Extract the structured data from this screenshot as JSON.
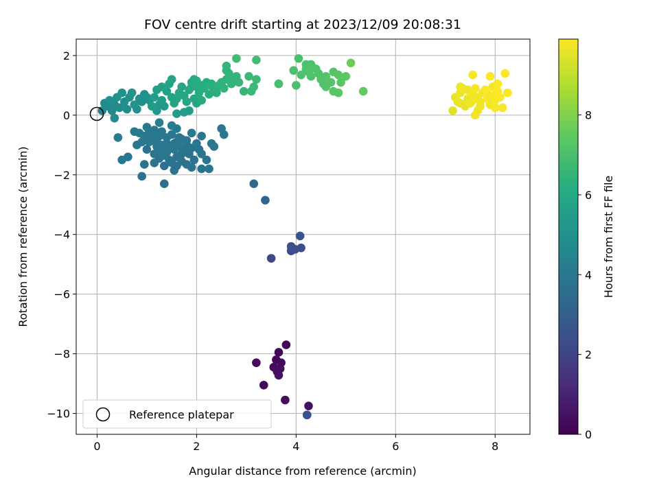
{
  "chart_data": {
    "type": "scatter",
    "title": "FOV centre drift starting at 2023/12/09 20:08:31",
    "xlabel": "Angular distance from reference (arcmin)",
    "ylabel": "Rotation from reference (arcmin)",
    "xlim": [
      -0.42,
      8.7
    ],
    "ylim": [
      -10.7,
      2.55
    ],
    "xticks": [
      0,
      2,
      4,
      6,
      8
    ],
    "xtick_labels": [
      "0",
      "2",
      "4",
      "6",
      "8"
    ],
    "yticks": [
      2,
      0,
      -2,
      -4,
      -6,
      -8,
      -10
    ],
    "ytick_labels": [
      "2",
      "0",
      "−2",
      "−4",
      "−6",
      "−8",
      "−10"
    ],
    "grid": true,
    "legend": {
      "location": "lower-left",
      "entries": [
        {
          "label": "Reference platepar",
          "marker": "open-circle"
        }
      ]
    },
    "reference_point": {
      "x": 0,
      "y": 0
    },
    "colorbar": {
      "label": "Hours from first FF file",
      "colormap": "viridis",
      "range": [
        0,
        9.9
      ],
      "ticks": [
        0,
        2,
        4,
        6,
        8
      ],
      "tick_labels": [
        "0",
        "2",
        "4",
        "6",
        "8"
      ]
    },
    "series": [
      {
        "points": [
          [
            3.8,
            -7.7,
            0.1
          ],
          [
            3.65,
            -7.95,
            0.15
          ],
          [
            3.6,
            -8.2,
            0.2
          ],
          [
            3.7,
            -8.3,
            0.25
          ],
          [
            3.55,
            -8.45,
            0.3
          ],
          [
            3.62,
            -8.6,
            0.35
          ],
          [
            3.68,
            -8.5,
            0.4
          ],
          [
            3.2,
            -8.3,
            0.3
          ],
          [
            3.35,
            -9.05,
            0.2
          ],
          [
            3.78,
            -9.55,
            0.3
          ],
          [
            4.25,
            -9.75,
            0.5
          ],
          [
            3.65,
            -8.72,
            0.45
          ],
          [
            4.22,
            -10.05,
            2.5
          ],
          [
            4.22,
            -10.05,
            2.5
          ],
          [
            3.5,
            -4.8,
            2.2
          ],
          [
            3.9,
            -4.55,
            2.3
          ],
          [
            3.9,
            -4.4,
            2.4
          ],
          [
            4.1,
            -4.45,
            2.35
          ],
          [
            4.08,
            -4.05,
            2.6
          ],
          [
            3.98,
            -4.5,
            2.45
          ],
          [
            3.38,
            -2.85,
            3.2
          ],
          [
            3.15,
            -2.3,
            3.4
          ],
          [
            1.35,
            -2.3,
            3.7
          ],
          [
            0.9,
            -2.05,
            3.8
          ],
          [
            0.95,
            -1.65,
            3.9
          ],
          [
            1.15,
            -1.6,
            3.8
          ],
          [
            0.5,
            -1.5,
            3.9
          ],
          [
            0.62,
            -1.4,
            3.9
          ],
          [
            0.75,
            -0.55,
            4.0
          ],
          [
            0.42,
            -0.75,
            4.1
          ],
          [
            1.0,
            -0.4,
            4.0
          ],
          [
            1.5,
            -0.35,
            4.1
          ],
          [
            1.6,
            -0.45,
            4.05
          ],
          [
            1.25,
            -0.25,
            4.2
          ],
          [
            0.85,
            -0.6,
            4.1
          ],
          [
            0.95,
            -0.7,
            3.95
          ],
          [
            1.1,
            -0.65,
            4.0
          ],
          [
            1.2,
            -0.8,
            3.95
          ],
          [
            1.3,
            -0.55,
            4.0
          ],
          [
            1.4,
            -0.75,
            3.9
          ],
          [
            1.5,
            -0.65,
            4.0
          ],
          [
            1.6,
            -0.9,
            3.85
          ],
          [
            1.7,
            -0.8,
            3.9
          ],
          [
            1.8,
            -1.0,
            3.8
          ],
          [
            1.9,
            -1.1,
            3.85
          ],
          [
            2.0,
            -0.95,
            3.9
          ],
          [
            2.1,
            -0.7,
            3.95
          ],
          [
            2.3,
            -0.95,
            3.95
          ],
          [
            2.35,
            -1.05,
            3.9
          ],
          [
            2.5,
            -0.45,
            3.9
          ],
          [
            2.55,
            -0.65,
            3.95
          ],
          [
            2.1,
            -1.3,
            3.9
          ],
          [
            2.2,
            -1.5,
            3.85
          ],
          [
            2.25,
            -1.8,
            3.9
          ],
          [
            2.1,
            -1.8,
            3.85
          ],
          [
            1.9,
            -1.75,
            3.8
          ],
          [
            1.8,
            -1.65,
            3.8
          ],
          [
            1.55,
            -1.85,
            3.75
          ],
          [
            1.5,
            -1.6,
            3.85
          ],
          [
            1.6,
            -1.4,
            3.8
          ],
          [
            1.7,
            -1.3,
            3.8
          ],
          [
            1.4,
            -1.25,
            3.85
          ],
          [
            1.3,
            -1.2,
            3.9
          ],
          [
            1.2,
            -1.05,
            3.9
          ],
          [
            1.05,
            -0.9,
            4.0
          ],
          [
            0.9,
            -0.9,
            3.95
          ],
          [
            0.8,
            -1.0,
            3.9
          ],
          [
            1.0,
            -1.15,
            3.85
          ],
          [
            1.15,
            -1.3,
            3.85
          ],
          [
            1.25,
            -1.45,
            3.8
          ],
          [
            1.35,
            -1.35,
            3.9
          ],
          [
            1.45,
            -1.1,
            3.95
          ],
          [
            1.55,
            -1.15,
            3.95
          ],
          [
            1.65,
            -1.05,
            3.9
          ],
          [
            1.75,
            -1.2,
            3.85
          ],
          [
            1.85,
            -1.3,
            3.8
          ],
          [
            1.95,
            -1.5,
            3.8
          ],
          [
            1.7,
            -1.55,
            3.8
          ],
          [
            1.6,
            -1.7,
            3.75
          ],
          [
            1.45,
            -1.5,
            3.8
          ],
          [
            1.35,
            -1.7,
            3.75
          ],
          [
            1.25,
            -0.7,
            3.95
          ],
          [
            1.15,
            -0.5,
            4.0
          ],
          [
            1.05,
            -0.55,
            3.95
          ],
          [
            1.65,
            -0.75,
            3.9
          ],
          [
            1.8,
            -0.85,
            3.9
          ],
          [
            1.9,
            -0.6,
            3.95
          ],
          [
            2.05,
            -1.15,
            3.85
          ],
          [
            1.2,
            -0.95,
            3.9
          ],
          [
            0.95,
            -0.8,
            3.95
          ],
          [
            1.4,
            -0.95,
            3.9
          ],
          [
            1.55,
            -0.95,
            3.9
          ],
          [
            1.3,
            -1.0,
            3.9
          ],
          [
            1.1,
            -0.8,
            3.95
          ],
          [
            0.3,
            0.15,
            4.6
          ],
          [
            0.2,
            0.3,
            4.8
          ],
          [
            0.25,
            0.5,
            4.9
          ],
          [
            0.15,
            0.4,
            4.7
          ],
          [
            0.35,
            0.35,
            4.75
          ],
          [
            0.45,
            0.25,
            4.8
          ],
          [
            0.55,
            0.45,
            4.9
          ],
          [
            0.65,
            0.6,
            5.0
          ],
          [
            0.75,
            0.35,
            5.1
          ],
          [
            0.85,
            0.55,
            5.0
          ],
          [
            0.95,
            0.7,
            4.95
          ],
          [
            0.6,
            0.2,
            4.85
          ],
          [
            0.4,
            0.6,
            5.0
          ],
          [
            0.5,
            0.75,
            5.05
          ],
          [
            0.7,
            0.75,
            5.1
          ],
          [
            0.8,
            0.2,
            4.9
          ],
          [
            0.9,
            0.45,
            4.95
          ],
          [
            1.0,
            0.6,
            5.0
          ],
          [
            0.35,
            -0.1,
            4.7
          ],
          [
            0.1,
            0.15,
            4.6
          ],
          [
            1.2,
            0.15,
            5.3
          ],
          [
            1.25,
            0.35,
            5.3
          ],
          [
            1.3,
            0.5,
            5.4
          ],
          [
            1.35,
            0.3,
            5.35
          ],
          [
            1.1,
            0.3,
            5.4
          ],
          [
            1.15,
            0.6,
            5.5
          ],
          [
            1.2,
            0.85,
            5.6
          ],
          [
            1.3,
            0.95,
            5.65
          ],
          [
            1.4,
            0.8,
            5.7
          ],
          [
            1.5,
            0.6,
            5.75
          ],
          [
            1.55,
            0.4,
            5.8
          ],
          [
            1.6,
            0.55,
            5.8
          ],
          [
            1.65,
            0.75,
            5.85
          ],
          [
            1.7,
            0.95,
            5.9
          ],
          [
            1.75,
            0.65,
            5.9
          ],
          [
            1.8,
            0.45,
            5.95
          ],
          [
            1.85,
            0.85,
            6.0
          ],
          [
            1.9,
            1.1,
            6.0
          ],
          [
            1.95,
            1.2,
            6.05
          ],
          [
            2.0,
            0.95,
            6.1
          ],
          [
            2.05,
            0.75,
            6.1
          ],
          [
            2.1,
            0.5,
            6.15
          ],
          [
            2.15,
            0.9,
            6.2
          ],
          [
            2.2,
            1.1,
            6.2
          ],
          [
            2.25,
            0.7,
            6.2
          ],
          [
            2.3,
            1.05,
            6.25
          ],
          [
            2.35,
            0.85,
            6.3
          ],
          [
            2.4,
            0.75,
            6.3
          ],
          [
            2.45,
            1.0,
            6.35
          ],
          [
            2.5,
            1.1,
            6.4
          ],
          [
            2.55,
            0.9,
            6.4
          ],
          [
            2.6,
            1.2,
            6.45
          ],
          [
            2.65,
            1.4,
            6.5
          ],
          [
            2.7,
            1.05,
            6.45
          ],
          [
            2.75,
            1.2,
            6.5
          ],
          [
            2.8,
            1.3,
            6.55
          ],
          [
            2.6,
            1.65,
            6.55
          ],
          [
            2.6,
            1.5,
            6.5
          ],
          [
            2.85,
            1.1,
            6.6
          ],
          [
            2.95,
            0.8,
            6.6
          ],
          [
            3.05,
            1.3,
            6.65
          ],
          [
            3.1,
            0.8,
            6.65
          ],
          [
            3.15,
            0.95,
            6.7
          ],
          [
            3.2,
            1.2,
            6.7
          ],
          [
            2.8,
            1.9,
            6.8
          ],
          [
            3.2,
            1.85,
            6.8
          ],
          [
            1.75,
            0.1,
            5.5
          ],
          [
            1.85,
            0.15,
            5.5
          ],
          [
            1.6,
            0.05,
            5.4
          ],
          [
            2.0,
            0.4,
            5.8
          ],
          [
            1.95,
            0.55,
            5.9
          ],
          [
            1.05,
            0.5,
            5.1
          ],
          [
            1.45,
            1.05,
            5.8
          ],
          [
            1.5,
            1.2,
            5.85
          ],
          [
            2.25,
            1.0,
            6.3
          ],
          [
            2.0,
            1.15,
            6.2
          ],
          [
            2.1,
            1.0,
            6.2
          ],
          [
            1.9,
            0.95,
            6.05
          ],
          [
            3.65,
            1.05,
            6.9
          ],
          [
            3.65,
            1.05,
            6.9
          ],
          [
            4.05,
            1.9,
            7.0
          ],
          [
            4.2,
            1.7,
            7.05
          ],
          [
            4.3,
            1.7,
            7.1
          ],
          [
            3.95,
            1.5,
            7.0
          ],
          [
            4.1,
            1.35,
            7.05
          ],
          [
            4.2,
            1.55,
            7.1
          ],
          [
            4.3,
            1.3,
            7.1
          ],
          [
            4.4,
            1.55,
            7.15
          ],
          [
            4.5,
            1.2,
            7.2
          ],
          [
            4.6,
            1.3,
            7.2
          ],
          [
            4.7,
            1.1,
            7.25
          ],
          [
            4.75,
            1.45,
            7.25
          ],
          [
            4.85,
            1.35,
            7.3
          ],
          [
            4.9,
            1.1,
            7.3
          ],
          [
            4.0,
            1.0,
            7.0
          ],
          [
            4.6,
            0.95,
            7.2
          ],
          [
            4.75,
            0.8,
            7.3
          ],
          [
            4.85,
            0.75,
            7.35
          ],
          [
            5.0,
            1.3,
            7.4
          ],
          [
            5.1,
            1.75,
            7.7
          ],
          [
            5.35,
            0.8,
            7.5
          ],
          [
            4.45,
            1.4,
            7.15
          ],
          [
            4.55,
            1.05,
            7.2
          ],
          [
            4.25,
            1.45,
            7.1
          ],
          [
            7.15,
            0.15,
            9.5
          ],
          [
            7.2,
            0.6,
            9.6
          ],
          [
            7.3,
            0.75,
            9.65
          ],
          [
            7.35,
            0.9,
            9.7
          ],
          [
            7.25,
            0.45,
            9.6
          ],
          [
            7.45,
            0.55,
            9.65
          ],
          [
            7.5,
            0.4,
            9.7
          ],
          [
            7.55,
            0.7,
            9.75
          ],
          [
            7.6,
            0.9,
            9.8
          ],
          [
            7.65,
            0.6,
            9.75
          ],
          [
            7.7,
            0.45,
            9.7
          ],
          [
            7.75,
            0.75,
            9.8
          ],
          [
            7.8,
            0.85,
            9.85
          ],
          [
            7.85,
            0.55,
            9.8
          ],
          [
            7.9,
            0.35,
            9.75
          ],
          [
            7.95,
            0.65,
            9.8
          ],
          [
            8.0,
            0.5,
            9.85
          ],
          [
            8.05,
            0.8,
            9.9
          ],
          [
            8.1,
            0.6,
            9.85
          ],
          [
            8.15,
            0.25,
            9.8
          ],
          [
            8.25,
            0.75,
            9.9
          ],
          [
            8.2,
            1.4,
            9.9
          ],
          [
            7.9,
            1.3,
            9.85
          ],
          [
            7.55,
            1.35,
            9.8
          ],
          [
            7.6,
            0.0,
            9.7
          ],
          [
            7.45,
            0.85,
            9.65
          ],
          [
            7.7,
            0.3,
            9.7
          ],
          [
            7.95,
            0.95,
            9.8
          ],
          [
            8.0,
            0.25,
            9.8
          ],
          [
            7.4,
            0.3,
            9.6
          ],
          [
            7.85,
            0.7,
            9.6
          ],
          [
            7.3,
            0.4,
            9.6
          ],
          [
            7.55,
            0.5,
            9.7
          ],
          [
            8.05,
            1.05,
            9.85
          ],
          [
            7.65,
            0.15,
            9.7
          ],
          [
            7.3,
            0.95,
            9.65
          ]
        ]
      }
    ]
  }
}
